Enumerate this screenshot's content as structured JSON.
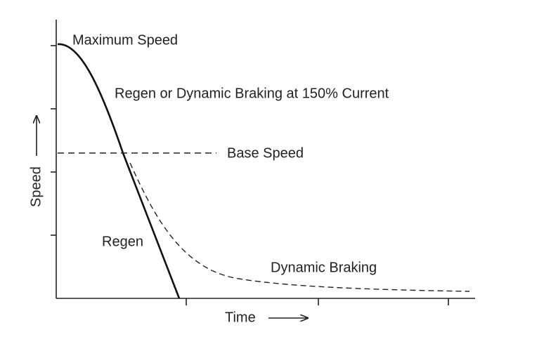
{
  "annotations": {
    "max_speed": "Maximum Speed",
    "braking_note": "Regen or Dynamic Braking at 150% Current",
    "base_speed": "Base Speed",
    "regen": "Regen",
    "dynamic_braking": "Dynamic Braking"
  },
  "axes": {
    "x_label": "Time",
    "y_label": "Speed"
  }
}
